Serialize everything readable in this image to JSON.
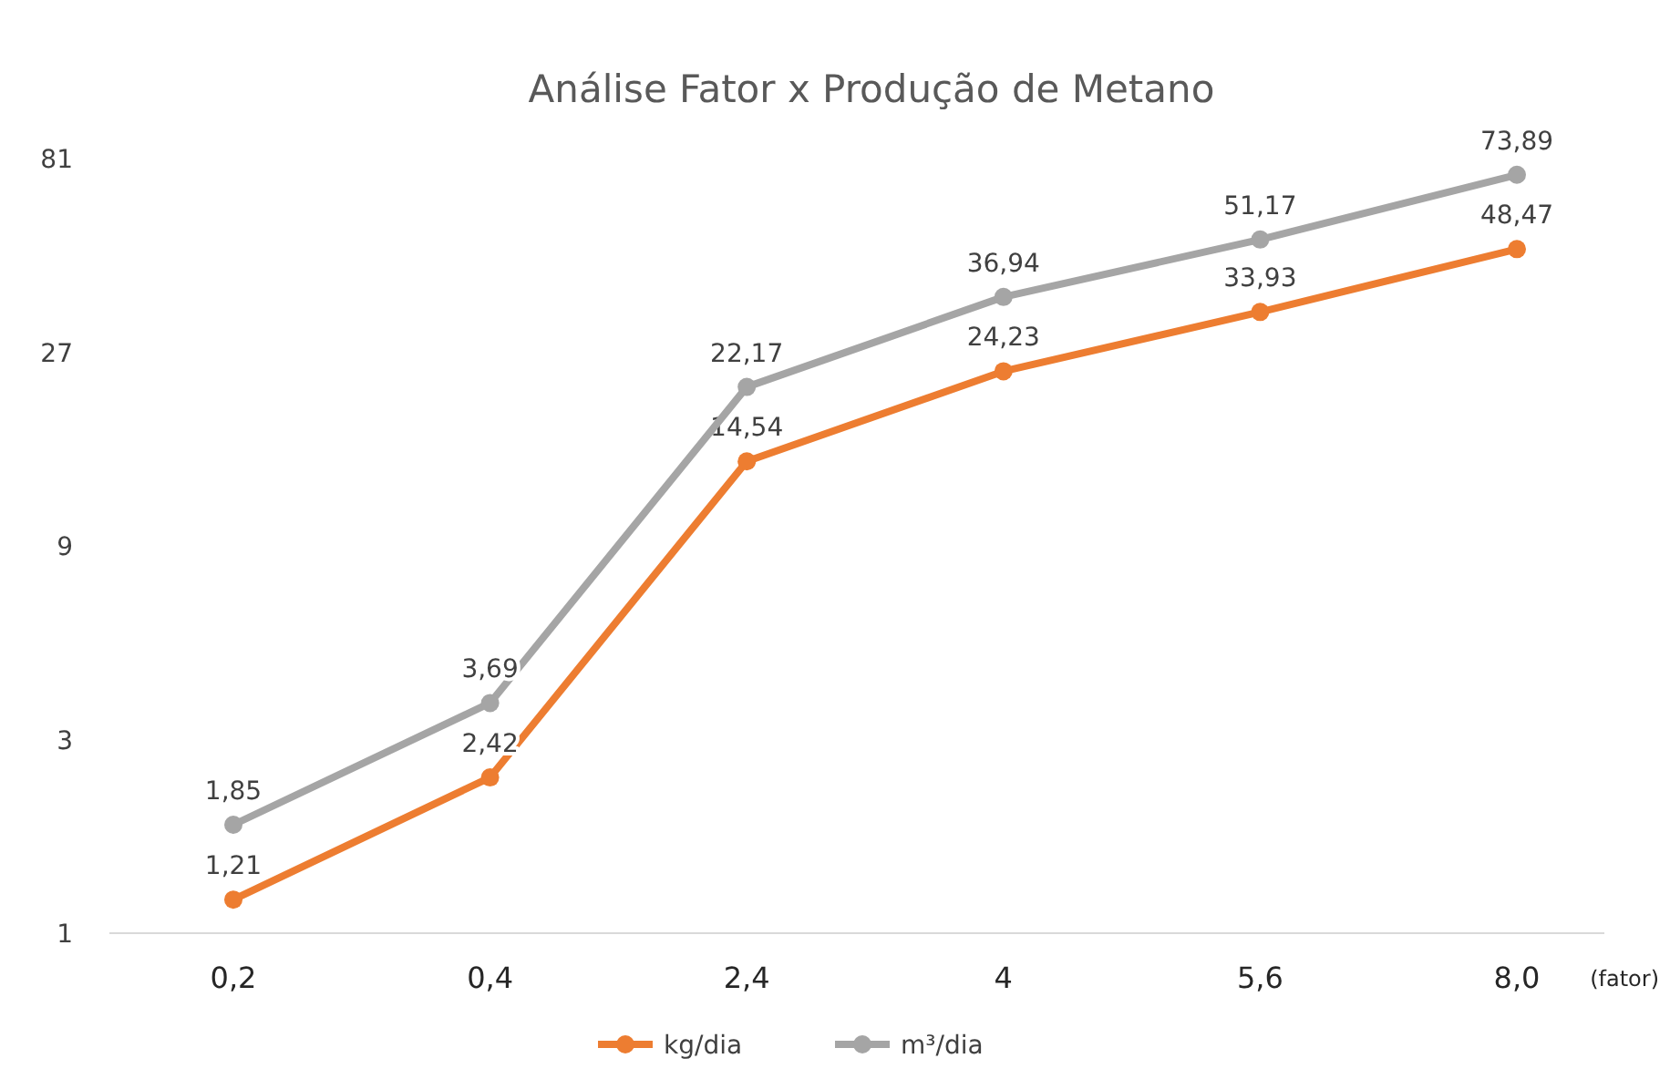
{
  "chart_data": {
    "type": "line",
    "title": "Análise Fator x Produção de Metano",
    "xlabel": "(fator)",
    "categories": [
      "0,2",
      "0,4",
      "2,4",
      "4",
      "5,6",
      "8,0"
    ],
    "series": [
      {
        "name": "kg/dia",
        "color": "#ed7d31",
        "values": [
          1.21,
          2.42,
          14.54,
          24.23,
          33.93,
          48.47
        ],
        "value_labels": [
          "1,21",
          "2,42",
          "14,54",
          "24,23",
          "33,93",
          "48,47"
        ]
      },
      {
        "name": "m³/dia",
        "color": "#a5a5a5",
        "values": [
          1.85,
          3.69,
          22.17,
          36.94,
          51.17,
          73.89
        ],
        "value_labels": [
          "1,85",
          "3,69",
          "22,17",
          "36,94",
          "51,17",
          "73,89"
        ]
      }
    ],
    "log": true,
    "ylim": [
      1,
      81
    ],
    "yticks": [
      1,
      3,
      9,
      27,
      81
    ],
    "grid": false,
    "legend": "bottom",
    "marker": "circle",
    "line_style": "solid"
  }
}
